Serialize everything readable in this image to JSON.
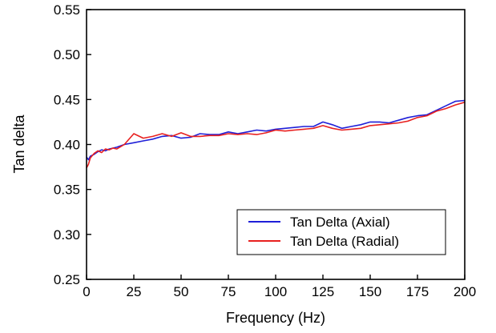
{
  "chart_data": {
    "type": "line",
    "xlabel": "Frequency (Hz)",
    "ylabel": "Tan delta",
    "xlim": [
      0,
      200
    ],
    "ylim": [
      0.25,
      0.55
    ],
    "x_ticks": [
      0,
      25,
      50,
      75,
      100,
      125,
      150,
      175,
      200
    ],
    "y_ticks": [
      "0.25",
      "0.30",
      "0.35",
      "0.40",
      "0.45",
      "0.50",
      "0.55"
    ],
    "grid": false,
    "legend_position": "bottom-right",
    "series": [
      {
        "name": "Tan Delta (Axial)",
        "color": "#1f1fd8",
        "points": [
          [
            0,
            0.386
          ],
          [
            1,
            0.383
          ],
          [
            2,
            0.387
          ],
          [
            4,
            0.389
          ],
          [
            6,
            0.392
          ],
          [
            8,
            0.394
          ],
          [
            10,
            0.393
          ],
          [
            12,
            0.395
          ],
          [
            14,
            0.396
          ],
          [
            16,
            0.397
          ],
          [
            20,
            0.4
          ],
          [
            25,
            0.402
          ],
          [
            30,
            0.404
          ],
          [
            35,
            0.406
          ],
          [
            40,
            0.409
          ],
          [
            45,
            0.41
          ],
          [
            50,
            0.407
          ],
          [
            55,
            0.408
          ],
          [
            60,
            0.412
          ],
          [
            65,
            0.411
          ],
          [
            70,
            0.411
          ],
          [
            75,
            0.414
          ],
          [
            80,
            0.412
          ],
          [
            85,
            0.414
          ],
          [
            90,
            0.416
          ],
          [
            95,
            0.415
          ],
          [
            100,
            0.417
          ],
          [
            105,
            0.418
          ],
          [
            110,
            0.419
          ],
          [
            115,
            0.42
          ],
          [
            120,
            0.42
          ],
          [
            125,
            0.425
          ],
          [
            130,
            0.422
          ],
          [
            135,
            0.418
          ],
          [
            140,
            0.42
          ],
          [
            145,
            0.422
          ],
          [
            150,
            0.425
          ],
          [
            155,
            0.425
          ],
          [
            160,
            0.424
          ],
          [
            165,
            0.427
          ],
          [
            170,
            0.43
          ],
          [
            175,
            0.432
          ],
          [
            180,
            0.433
          ],
          [
            185,
            0.438
          ],
          [
            190,
            0.443
          ],
          [
            195,
            0.448
          ],
          [
            200,
            0.449
          ]
        ]
      },
      {
        "name": "Tan Delta (Radial)",
        "color": "#e8201f",
        "points": [
          [
            0,
            0.374
          ],
          [
            1,
            0.378
          ],
          [
            2,
            0.385
          ],
          [
            4,
            0.39
          ],
          [
            6,
            0.393
          ],
          [
            8,
            0.391
          ],
          [
            10,
            0.395
          ],
          [
            12,
            0.394
          ],
          [
            14,
            0.396
          ],
          [
            16,
            0.395
          ],
          [
            20,
            0.4
          ],
          [
            25,
            0.412
          ],
          [
            30,
            0.407
          ],
          [
            35,
            0.409
          ],
          [
            40,
            0.412
          ],
          [
            45,
            0.409
          ],
          [
            50,
            0.413
          ],
          [
            55,
            0.409
          ],
          [
            60,
            0.409
          ],
          [
            65,
            0.41
          ],
          [
            70,
            0.41
          ],
          [
            75,
            0.412
          ],
          [
            80,
            0.411
          ],
          [
            85,
            0.412
          ],
          [
            90,
            0.411
          ],
          [
            95,
            0.413
          ],
          [
            100,
            0.416
          ],
          [
            105,
            0.415
          ],
          [
            110,
            0.416
          ],
          [
            115,
            0.417
          ],
          [
            120,
            0.418
          ],
          [
            125,
            0.421
          ],
          [
            130,
            0.418
          ],
          [
            135,
            0.416
          ],
          [
            140,
            0.417
          ],
          [
            145,
            0.418
          ],
          [
            150,
            0.421
          ],
          [
            155,
            0.422
          ],
          [
            160,
            0.423
          ],
          [
            165,
            0.424
          ],
          [
            170,
            0.426
          ],
          [
            175,
            0.43
          ],
          [
            180,
            0.432
          ],
          [
            185,
            0.437
          ],
          [
            190,
            0.44
          ],
          [
            195,
            0.444
          ],
          [
            200,
            0.447
          ]
        ]
      }
    ]
  }
}
